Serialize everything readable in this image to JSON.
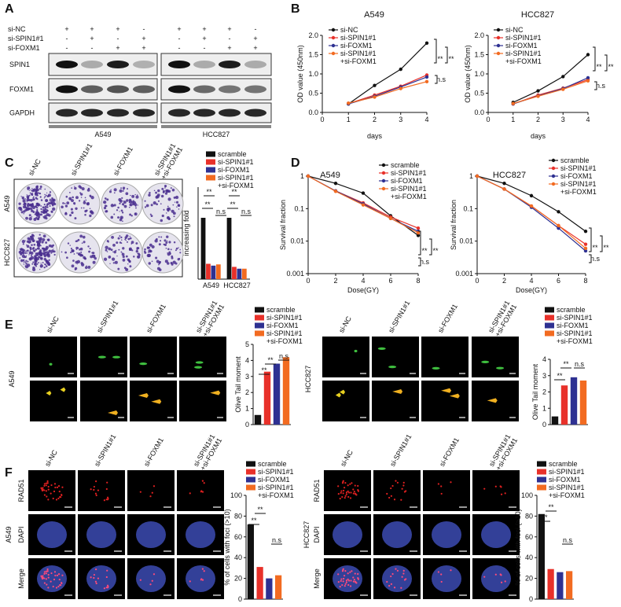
{
  "figure": {
    "panel_labels": [
      "A",
      "B",
      "C",
      "D",
      "E",
      "F"
    ],
    "blot": {
      "treatments": [
        {
          "label": "si-NC",
          "marks": [
            "+",
            "+",
            "+",
            "-",
            "+",
            "+",
            "+",
            "-"
          ]
        },
        {
          "label": "si-SPIN1#1",
          "marks": [
            "-",
            "+",
            "-",
            "+",
            "-",
            "+",
            "-",
            "+"
          ]
        },
        {
          "label": "si-FOXM1",
          "marks": [
            "-",
            "-",
            "+",
            "+",
            "-",
            "-",
            "+",
            "+"
          ]
        }
      ],
      "proteins": [
        "SPIN1",
        "FOXM1",
        "GAPDH"
      ],
      "cell_lines": [
        "A549",
        "HCC827"
      ]
    },
    "colony": {
      "columns": [
        "si-NC",
        "si-SPIN1#1",
        "si-FOXM1",
        "si-SPIN1#1\n+si-FOXM1"
      ],
      "rows": [
        "A549",
        "HCC827"
      ]
    },
    "comet": [
      {
        "cell_line": "A549",
        "columns": [
          "si-NC",
          "si-SPIN1#1",
          "si-FOXM1",
          "si-SPIN1#1\n+si-FOXM1"
        ]
      },
      {
        "cell_line": "HCC827",
        "columns": [
          "si-NC",
          "si-SPIN1#1",
          "si-FOXM1",
          "si-SPIN1#1\n+si-FOXM1"
        ]
      }
    ],
    "foci": [
      {
        "cell_line": "A549",
        "rows": [
          "RAD51",
          "DAPI",
          "Merge"
        ],
        "columns": [
          "si-NC",
          "si-SPIN1#1",
          "si-FOXM1",
          "si-SPIN1#1\n+si-FOXM1"
        ]
      },
      {
        "cell_line": "HCC827",
        "rows": [
          "RAD51",
          "DAPI",
          "Merge"
        ],
        "columns": [
          "si-NC",
          "si-SPIN1#1",
          "si-FOXM1",
          "si-SPIN1#1\n+si-FOXM1"
        ]
      }
    ]
  },
  "chart_data": [
    {
      "type": "line",
      "title": "A549",
      "xlabel": "days",
      "ylabel": "OD value (450nm)",
      "x": [
        1,
        2,
        3,
        4
      ],
      "xlim": [
        0,
        4
      ],
      "xticks": [
        0,
        1,
        2,
        3,
        4
      ],
      "ylim": [
        0,
        2
      ],
      "yticks": [
        {
          "value": 0,
          "label": "0.0"
        },
        0.5,
        {
          "value": 1,
          "label": "1.0"
        },
        1.5,
        {
          "value": 2,
          "label": "2.0"
        }
      ],
      "series": [
        {
          "name": "si-NC",
          "color": "#111111",
          "values": [
            0.22,
            0.7,
            1.12,
            1.8
          ]
        },
        {
          "name": "si-SPIN1#1",
          "color": "#e8312a",
          "values": [
            0.23,
            0.45,
            0.68,
            0.97
          ]
        },
        {
          "name": "si-FOXM1",
          "color": "#2e3192",
          "values": [
            0.22,
            0.42,
            0.66,
            0.92
          ]
        },
        {
          "name": "si-SPIN1#1\n+si-FOXM1",
          "color": "#f26b21",
          "values": [
            0.24,
            0.4,
            0.62,
            0.8
          ]
        }
      ],
      "annotations": [
        "**",
        "**",
        "n.s"
      ]
    },
    {
      "type": "line",
      "title": "HCC827",
      "xlabel": "days",
      "ylabel": "OD value (450nm)",
      "x": [
        1,
        2,
        3,
        4
      ],
      "xlim": [
        0,
        4
      ],
      "xticks": [
        0,
        1,
        2,
        3,
        4
      ],
      "ylim": [
        0,
        2
      ],
      "yticks": [
        {
          "value": 0,
          "label": "0.0"
        },
        0.5,
        {
          "value": 1,
          "label": "1.0"
        },
        1.5,
        {
          "value": 2,
          "label": "2.0"
        }
      ],
      "series": [
        {
          "name": "si-NC",
          "color": "#111111",
          "values": [
            0.26,
            0.56,
            0.93,
            1.5
          ]
        },
        {
          "name": "si-SPIN1#1",
          "color": "#e8312a",
          "values": [
            0.22,
            0.45,
            0.63,
            0.85
          ]
        },
        {
          "name": "si-FOXM1",
          "color": "#2e3192",
          "values": [
            0.22,
            0.43,
            0.62,
            0.9
          ]
        },
        {
          "name": "si-SPIN1#1\n+si-FOXM1",
          "color": "#f26b21",
          "values": [
            0.23,
            0.42,
            0.6,
            0.82
          ]
        }
      ],
      "annotations": [
        "**",
        "**",
        "n.s"
      ]
    },
    {
      "type": "bar",
      "ylabel": "increasing fold",
      "categories": [
        "A549",
        "HCC827"
      ],
      "ylim": [
        0,
        1.5
      ],
      "series": [
        {
          "name": "scramble",
          "color": "#111111",
          "values": [
            1.0,
            1.0
          ]
        },
        {
          "name": "si-SPIN1#1",
          "color": "#e8312a",
          "values": [
            0.25,
            0.2
          ]
        },
        {
          "name": "si-FOXM1",
          "color": "#2e3192",
          "values": [
            0.22,
            0.17
          ]
        },
        {
          "name": "si-SPIN1#1\n+si-FOXM1",
          "color": "#f26b21",
          "values": [
            0.24,
            0.17
          ]
        }
      ],
      "annotations": [
        "**",
        "**",
        "n.s",
        "**",
        "**",
        "n.s"
      ]
    },
    {
      "type": "line",
      "title": "A549",
      "xlabel": "Dose(GY)",
      "ylabel": "Survival fraction",
      "yscale": "log",
      "x": [
        0,
        2,
        4,
        6,
        8
      ],
      "xlim": [
        0,
        8
      ],
      "xticks": [
        0,
        2,
        4,
        6,
        8
      ],
      "ylim": [
        0.001,
        1
      ],
      "yticks": [
        0.001,
        0.01,
        0.1,
        1
      ],
      "series": [
        {
          "name": "scramble",
          "color": "#111111",
          "values": [
            1,
            0.6,
            0.3,
            0.06,
            0.015
          ]
        },
        {
          "name": "si-SPIN1#1",
          "color": "#e8312a",
          "values": [
            1,
            0.35,
            0.15,
            0.055,
            0.025
          ]
        },
        {
          "name": "si-FOXM1",
          "color": "#2e3192",
          "values": [
            1,
            0.35,
            0.14,
            0.05,
            0.02
          ]
        },
        {
          "name": "si-SPIN1#1\n+si-FOXM1",
          "color": "#f26b21",
          "values": [
            1,
            0.34,
            0.13,
            0.05,
            0.018
          ]
        }
      ],
      "annotations": [
        "**",
        "**",
        "n.s"
      ]
    },
    {
      "type": "line",
      "title": "HCC827",
      "xlabel": "Dose(GY)",
      "ylabel": "Survival fraction",
      "yscale": "log",
      "x": [
        0,
        2,
        4,
        6,
        8
      ],
      "xlim": [
        0,
        8
      ],
      "xticks": [
        0,
        2,
        4,
        6,
        8
      ],
      "ylim": [
        0.001,
        1
      ],
      "yticks": [
        0.001,
        0.01,
        0.1,
        1
      ],
      "series": [
        {
          "name": "scramble",
          "color": "#111111",
          "values": [
            1,
            0.6,
            0.25,
            0.08,
            0.02
          ]
        },
        {
          "name": "si-SPIN1#1",
          "color": "#e8312a",
          "values": [
            1,
            0.4,
            0.12,
            0.03,
            0.008
          ]
        },
        {
          "name": "si-FOXM1",
          "color": "#2e3192",
          "values": [
            1,
            0.4,
            0.11,
            0.025,
            0.005
          ]
        },
        {
          "name": "si-SPIN1#1\n+si-FOXM1",
          "color": "#f26b21",
          "values": [
            1,
            0.4,
            0.12,
            0.03,
            0.006
          ]
        }
      ],
      "annotations": [
        "**",
        "**",
        "n.s"
      ]
    },
    {
      "type": "bar",
      "ylabel": "Olive Tail moment",
      "ylim": [
        0,
        5
      ],
      "yticks": [
        0,
        1,
        2,
        3,
        4,
        5
      ],
      "series": [
        {
          "name": "scramble",
          "color": "#111111",
          "values": [
            0.6
          ]
        },
        {
          "name": "si-SPIN1#1",
          "color": "#e8312a",
          "values": [
            3.3
          ]
        },
        {
          "name": "si-FOXM1",
          "color": "#2e3192",
          "values": [
            3.8
          ]
        },
        {
          "name": "si-SPIN1#1\n+si-FOXM1",
          "color": "#f26b21",
          "values": [
            4.2
          ]
        }
      ],
      "annotations": [
        "**",
        "**",
        "n.s"
      ]
    },
    {
      "type": "bar",
      "ylabel": "Olive Tail moment",
      "ylim": [
        0,
        4
      ],
      "yticks": [
        0,
        1,
        2,
        3,
        4
      ],
      "series": [
        {
          "name": "scramble",
          "color": "#111111",
          "values": [
            0.5
          ]
        },
        {
          "name": "si-SPIN1#1",
          "color": "#e8312a",
          "values": [
            2.4
          ]
        },
        {
          "name": "si-FOXM1",
          "color": "#2e3192",
          "values": [
            2.9
          ]
        },
        {
          "name": "si-SPIN1#1\n+si-FOXM1",
          "color": "#f26b21",
          "values": [
            2.7
          ]
        }
      ],
      "annotations": [
        "**",
        "**",
        "n.s"
      ]
    },
    {
      "type": "bar",
      "ylabel": "% of cells with foci  (>10)",
      "ylim": [
        0,
        100
      ],
      "yticks": [
        0,
        20,
        40,
        60,
        80,
        100
      ],
      "series": [
        {
          "name": "scramble",
          "color": "#111111",
          "values": [
            72
          ]
        },
        {
          "name": "si-SPIN1#1",
          "color": "#e8312a",
          "values": [
            31
          ]
        },
        {
          "name": "si-FOXM1",
          "color": "#2e3192",
          "values": [
            20
          ]
        },
        {
          "name": "si-SPIN1#1\n+si-FOXM1",
          "color": "#f26b21",
          "values": [
            23
          ]
        }
      ],
      "annotations": [
        "**",
        "**",
        "n.s"
      ]
    },
    {
      "type": "bar",
      "ylabel": "% of cells with foci  (>10)",
      "ylim": [
        0,
        100
      ],
      "yticks": [
        0,
        20,
        40,
        60,
        80,
        100
      ],
      "series": [
        {
          "name": "scramble",
          "color": "#111111",
          "values": [
            82
          ]
        },
        {
          "name": "si-SPIN1#1",
          "color": "#e8312a",
          "values": [
            29
          ]
        },
        {
          "name": "si-FOXM1",
          "color": "#2e3192",
          "values": [
            26
          ]
        },
        {
          "name": "si-SPIN1#1\n+si-FOXM1",
          "color": "#f26b21",
          "values": [
            27
          ]
        }
      ],
      "annotations": [
        "**",
        "**",
        "n.s"
      ]
    }
  ]
}
